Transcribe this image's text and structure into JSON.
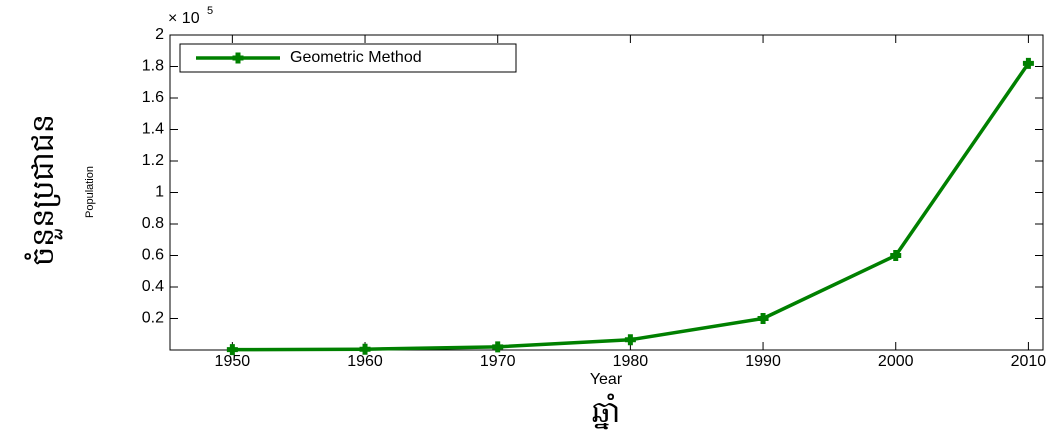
{
  "chart_data": {
    "type": "line",
    "y_multiplier": {
      "base": "× 10",
      "power": "5"
    },
    "ylabel": "ចំនួនប្រជាជន",
    "ylabel_secondary": "Population",
    "xlabel": "Year",
    "xlabel_secondary": "ឆ្នាំ",
    "x": [
      1950,
      1960,
      1970,
      1980,
      1990,
      2000,
      2010
    ],
    "series": [
      {
        "name": "Geometric Method",
        "color": "#008000",
        "values": [
          0.002,
          0.005,
          0.02,
          0.065,
          0.2,
          0.6,
          1.82
        ]
      }
    ],
    "xlim": [
      1945.3,
      2011.1
    ],
    "ylim": [
      0,
      2
    ],
    "xticks": [
      1950,
      1960,
      1970,
      1980,
      1990,
      2000,
      2010
    ],
    "yticks": [
      0.2,
      0.4,
      0.6,
      0.8,
      1,
      1.2,
      1.4,
      1.6,
      1.8,
      2
    ],
    "grid": false,
    "legend": "upper left"
  }
}
